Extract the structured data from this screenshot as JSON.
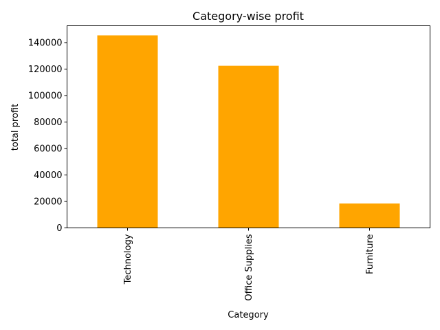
{
  "chart_data": {
    "type": "bar",
    "title": "Category-wise profit",
    "xlabel": "Category",
    "ylabel": "total profit",
    "categories": [
      "Technology",
      "Office Supplies",
      "Furniture"
    ],
    "values": [
      145455,
      122491,
      18451
    ],
    "ylim": [
      0,
      152700
    ],
    "yticks": [
      0,
      20000,
      40000,
      60000,
      80000,
      100000,
      120000,
      140000
    ],
    "ytick_labels": [
      "0",
      "20000",
      "40000",
      "60000",
      "80000",
      "100000",
      "120000",
      "140000"
    ],
    "bar_color": "#ffa500",
    "grid": false,
    "legend": "none"
  }
}
